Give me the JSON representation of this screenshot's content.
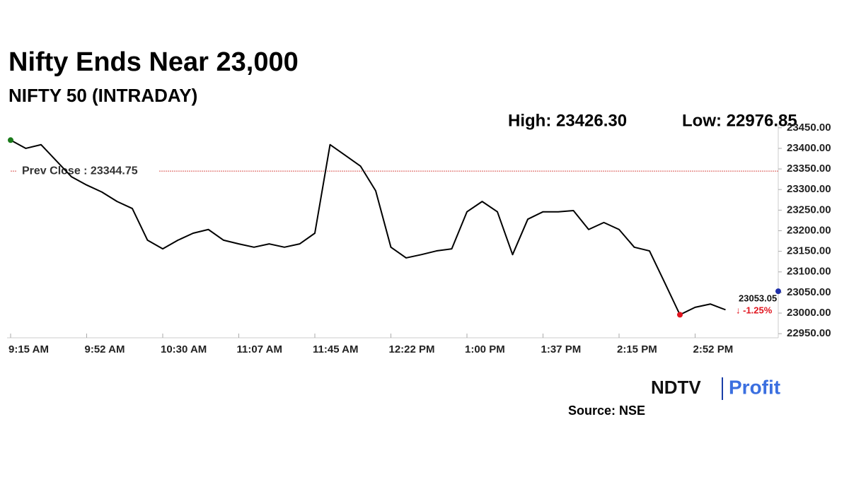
{
  "chart_data": {
    "type": "line",
    "title": "Nifty Ends Near 23,000",
    "subtitle": "NIFTY 50 (INTRADAY)",
    "high_label": "High: 23426.30",
    "low_label": "Low: 22976.85",
    "categories": [
      "9:15 AM",
      null,
      null,
      null,
      null,
      "9:52 AM",
      null,
      null,
      null,
      null,
      "10:30 AM",
      null,
      null,
      null,
      null,
      "11:07 AM",
      null,
      null,
      null,
      null,
      "11:45 AM",
      null,
      null,
      null,
      null,
      "12:22 PM",
      null,
      null,
      null,
      null,
      "1:00 PM",
      null,
      null,
      null,
      null,
      "1:37 PM",
      null,
      null,
      null,
      null,
      "2:15 PM",
      null,
      null,
      null,
      null,
      "2:52 PM",
      null,
      null
    ],
    "series": [
      {
        "name": "NIFTY 50",
        "color": "#000000",
        "values": [
          23420,
          23400,
          23409,
          23370,
          23331,
          23311,
          23294,
          23271,
          23254,
          23177,
          23156,
          23177,
          23194,
          23203,
          23177,
          23168,
          23160,
          23168,
          23160,
          23168,
          23194,
          23409,
          23383,
          23357,
          23297,
          23160,
          23134,
          23142,
          23151,
          23156,
          23246,
          23271,
          23246,
          23142,
          23228,
          23246,
          23246,
          23249,
          23203,
          23220,
          23203,
          23160,
          23151,
          23074,
          22996,
          23014,
          23022,
          23008
        ]
      }
    ],
    "prev_close": {
      "value": 23344.75,
      "label": "Prev Close : 23344.75",
      "color": "#d9534f"
    },
    "last": {
      "value": 23053.05,
      "label": "23053.05",
      "change_label": "↓ -1.25%",
      "color": "#1f2fa8"
    },
    "low_index_color": "#e0141e",
    "start_color": "#1a7a1a",
    "ylim": [
      22940,
      23460
    ],
    "yticks": [
      {
        "value": 22950,
        "label": "22950.00"
      },
      {
        "value": 23000,
        "label": "23000.00"
      },
      {
        "value": 23050,
        "label": "23050.00"
      },
      {
        "value": 23100,
        "label": "23100.00"
      },
      {
        "value": 23150,
        "label": "23150.00"
      },
      {
        "value": 23200,
        "label": "23200.00"
      },
      {
        "value": 23250,
        "label": "23250.00"
      },
      {
        "value": 23300,
        "label": "23300.00"
      },
      {
        "value": 23350,
        "label": "23350.00"
      },
      {
        "value": 23400,
        "label": "23400.00"
      },
      {
        "value": 23450,
        "label": "23450.00"
      }
    ],
    "grid": false,
    "logo_left": "NDTV",
    "logo_right": "Profit",
    "source": "Source: NSE"
  }
}
